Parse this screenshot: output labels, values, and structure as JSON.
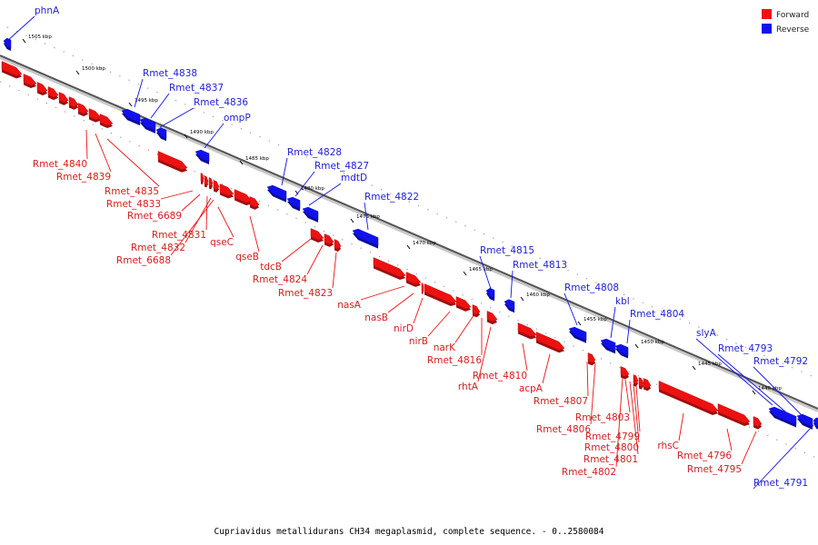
{
  "caption": "Cupriavidus metallidurans CH34 megaplasmid, complete sequence. - 0..2580084",
  "legend": [
    {
      "label": "Forward",
      "color": "#ee1111"
    },
    {
      "label": "Reverse",
      "color": "#1111ee"
    }
  ],
  "ticks": [
    "1505 kbp",
    "1500 kbp",
    "1495 kbp",
    "1490 kbp",
    "1485 kbp",
    "1480 kbp",
    "1475 kbp",
    "1470 kbp",
    "1465 kbp",
    "1460 kbp",
    "1455 kbp",
    "1450 kbp",
    "1445 kbp",
    "1440 kbp"
  ],
  "reverse_genes": [
    "phnA",
    "Rmet_4838",
    "Rmet_4837",
    "Rmet_4836",
    "ompP",
    "Rmet_4828",
    "Rmet_4827",
    "mdtD",
    "Rmet_4822",
    "Rmet_4815",
    "Rmet_4813",
    "Rmet_4808",
    "kbl",
    "Rmet_4804",
    "slyA",
    "Rmet_4793",
    "Rmet_4792",
    "Rmet_4791"
  ],
  "forward_genes": [
    "Rmet_4840",
    "Rmet_4839",
    "Rmet_4835",
    "Rmet_4833",
    "Rmet_6689",
    "Rmet_4831",
    "Rmet_4832",
    "Rmet_6688",
    "qseC",
    "qseB",
    "tdcB",
    "Rmet_4824",
    "Rmet_4823",
    "nasA",
    "nasB",
    "nirD",
    "nirB",
    "narK",
    "Rmet_4816",
    "rhtA",
    "Rmet_4810",
    "acpA",
    "Rmet_4807",
    "Rmet_4806",
    "Rmet_4803",
    "Rmet_4799",
    "Rmet_4800",
    "Rmet_4801",
    "Rmet_4802",
    "rhsC",
    "Rmet_4796",
    "Rmet_4795"
  ]
}
